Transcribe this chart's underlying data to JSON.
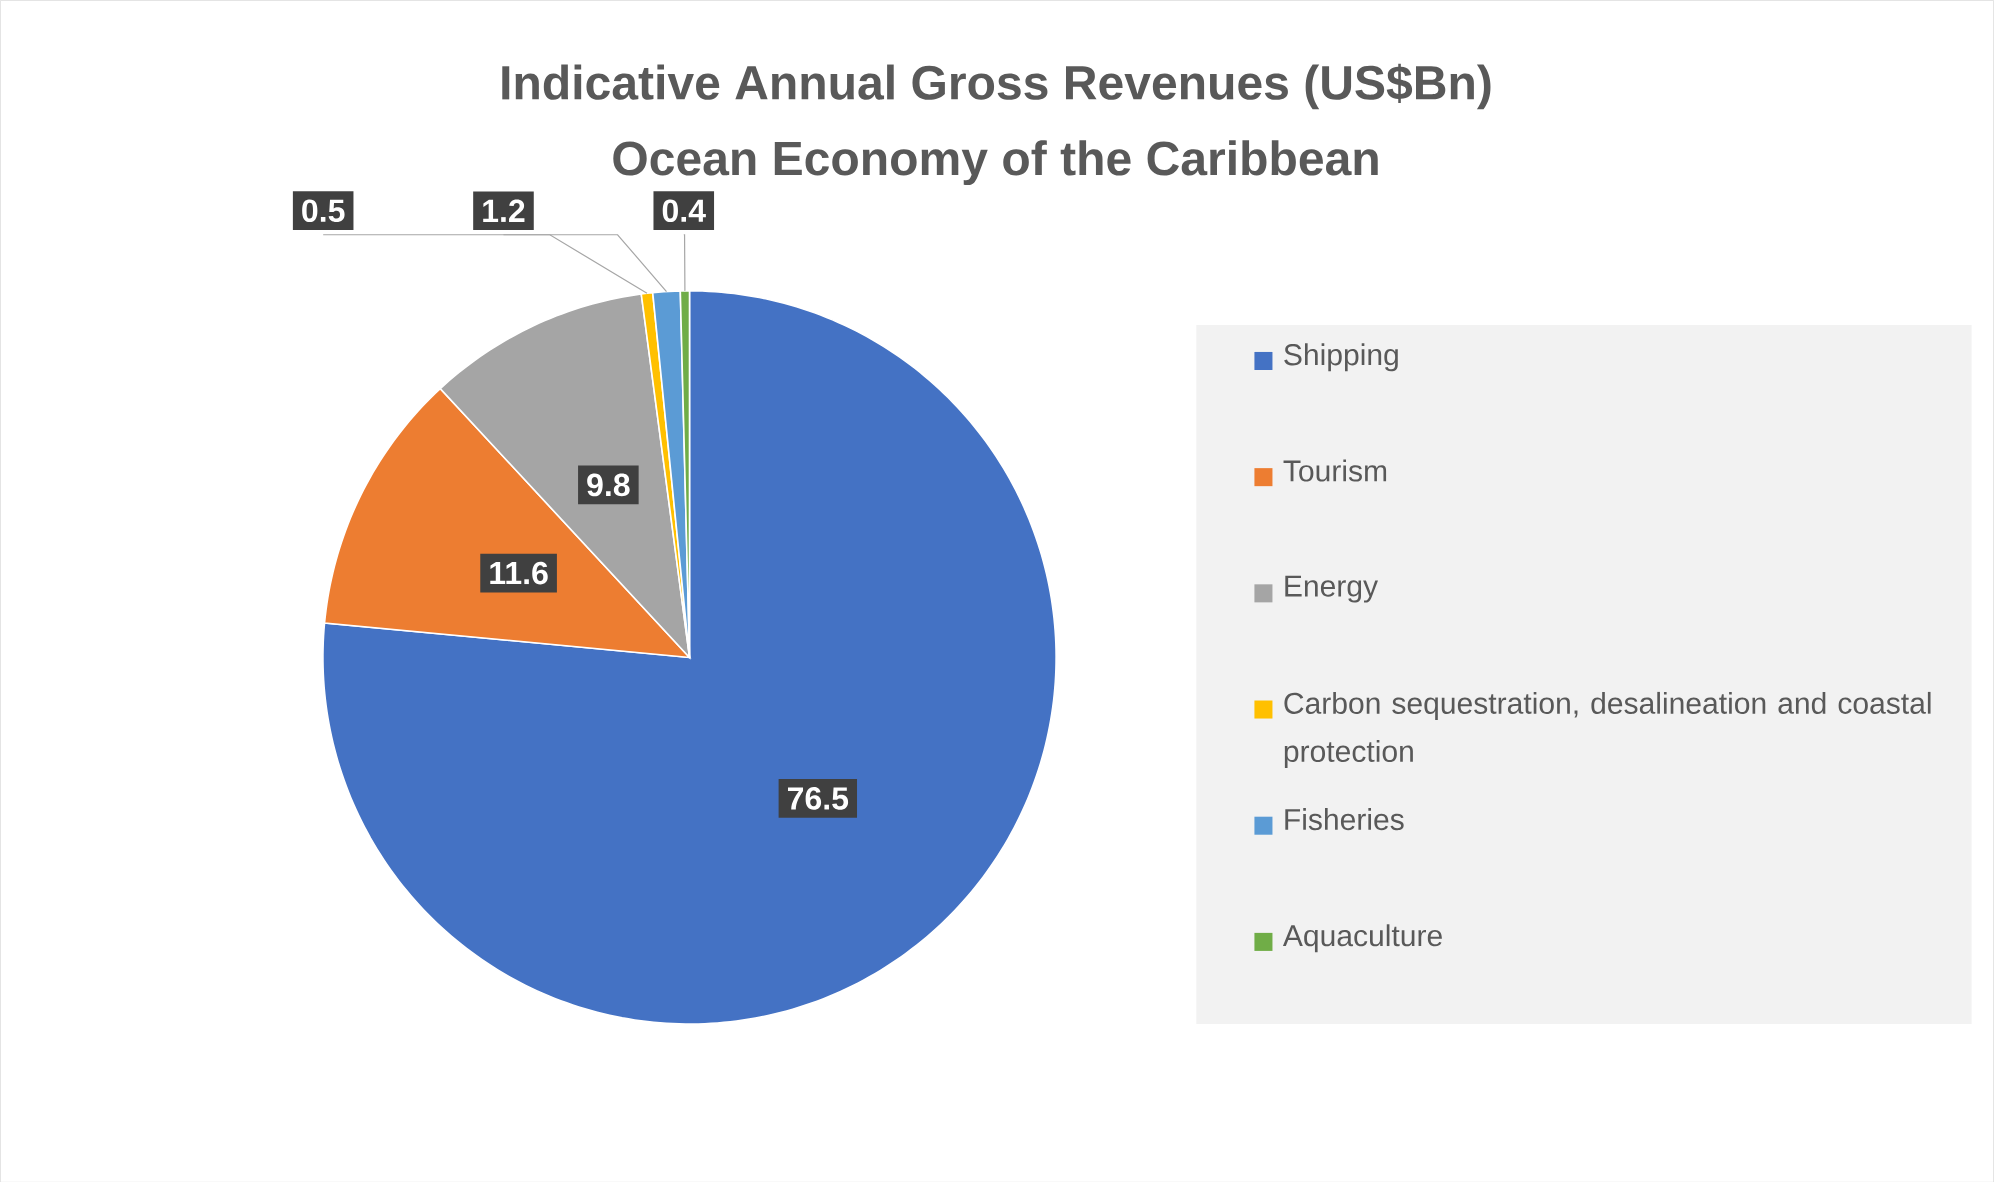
{
  "chart_data": {
    "type": "pie",
    "title": "Indicative Annual Gross Revenues (US$Bn)",
    "subtitle": "Ocean Economy of the Caribbean",
    "categories": [
      "Shipping",
      "Tourism",
      "Energy",
      "Carbon sequestration, desalineation and coastal protection",
      "Fisheries",
      "Aquaculture"
    ],
    "values": [
      76.5,
      11.6,
      9.8,
      0.5,
      1.2,
      0.4
    ],
    "colors": [
      "#4472c4",
      "#ed7d31",
      "#a5a5a5",
      "#ffc000",
      "#5b9bd5",
      "#70ad47"
    ],
    "data_labels": true,
    "legend": "right"
  }
}
